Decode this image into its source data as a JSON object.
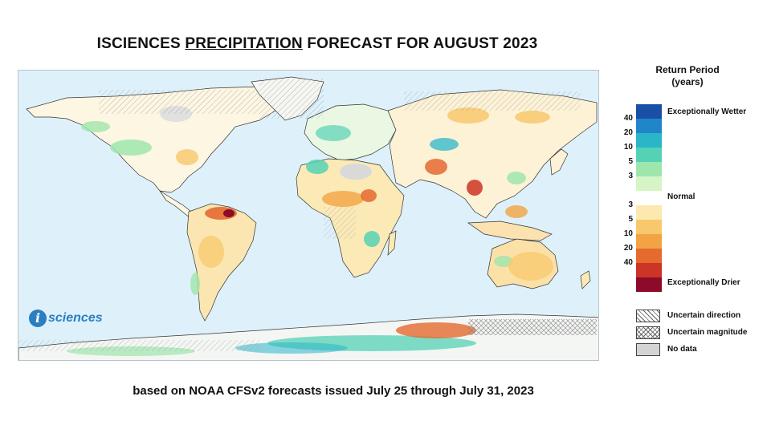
{
  "header": {
    "title_pre": "ISCIENCES ",
    "title_underlined": "PRECIPITATION",
    "title_post": " FORECAST FOR AUGUST 2023"
  },
  "logo": {
    "mark": "i",
    "text": "sciences"
  },
  "legend": {
    "title_line1": "Return Period",
    "title_line2": "(years)",
    "labels": {
      "wetter": "Exceptionally Wetter",
      "normal": "Normal",
      "drier": "Exceptionally Drier"
    },
    "wet_ticks": [
      "40",
      "20",
      "10",
      "5",
      "3"
    ],
    "dry_ticks": [
      "3",
      "5",
      "10",
      "20",
      "40"
    ],
    "colors": [
      "#1a4fa8",
      "#1f86c8",
      "#2bb5c9",
      "#55d2b5",
      "#9fe6ad",
      "#d6f5c6",
      "#ffffff",
      "#fbe9b0",
      "#f8c86c",
      "#f2a444",
      "#e46a30",
      "#cc3526",
      "#8c0a2a"
    ],
    "uncertainty": [
      {
        "name": "uncertain-direction",
        "label": "Uncertain direction",
        "pattern": "diag"
      },
      {
        "name": "uncertain-magnitude",
        "label": "Uncertain magnitude",
        "pattern": "cross"
      },
      {
        "name": "no-data",
        "label": "No data",
        "pattern": "gray"
      }
    ]
  },
  "footer": {
    "caption": "based on NOAA CFSv2 forecasts issued July 25 through July 31, 2023"
  }
}
